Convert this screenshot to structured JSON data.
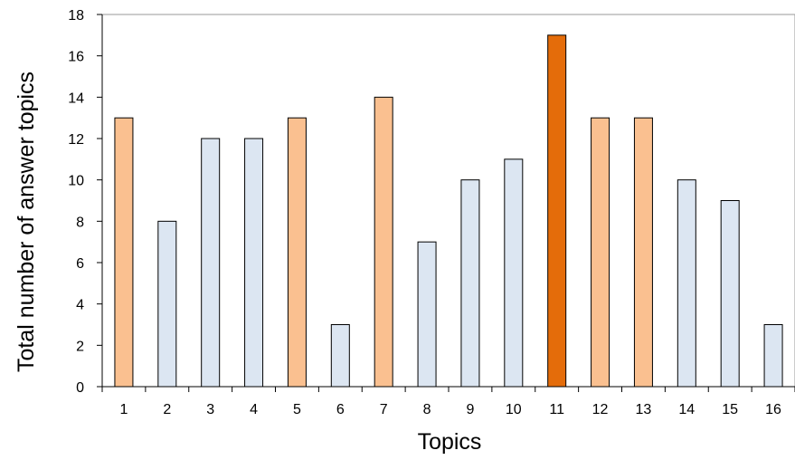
{
  "chart_data": {
    "type": "bar",
    "title": "",
    "xlabel": "Topics",
    "ylabel": "Total number of answer topics",
    "categories": [
      "1",
      "2",
      "3",
      "4",
      "5",
      "6",
      "7",
      "8",
      "9",
      "10",
      "11",
      "12",
      "13",
      "14",
      "15",
      "16"
    ],
    "values": [
      13,
      8,
      12,
      12,
      13,
      3,
      14,
      7,
      10,
      11,
      17,
      13,
      13,
      10,
      9,
      3
    ],
    "highlight": [
      "light-orange",
      "blue",
      "blue",
      "blue",
      "light-orange",
      "blue",
      "light-orange",
      "blue",
      "blue",
      "blue",
      "dark-orange",
      "light-orange",
      "light-orange",
      "blue",
      "blue",
      "blue"
    ],
    "ylim": [
      0,
      18
    ],
    "yticks": [
      0,
      2,
      4,
      6,
      8,
      10,
      12,
      14,
      16,
      18
    ],
    "grid": false,
    "legend": "none",
    "colors": {
      "blue": "#dce6f2",
      "light-orange": "#fac090",
      "dark-orange": "#e46c0a",
      "edge": "#000000"
    }
  }
}
